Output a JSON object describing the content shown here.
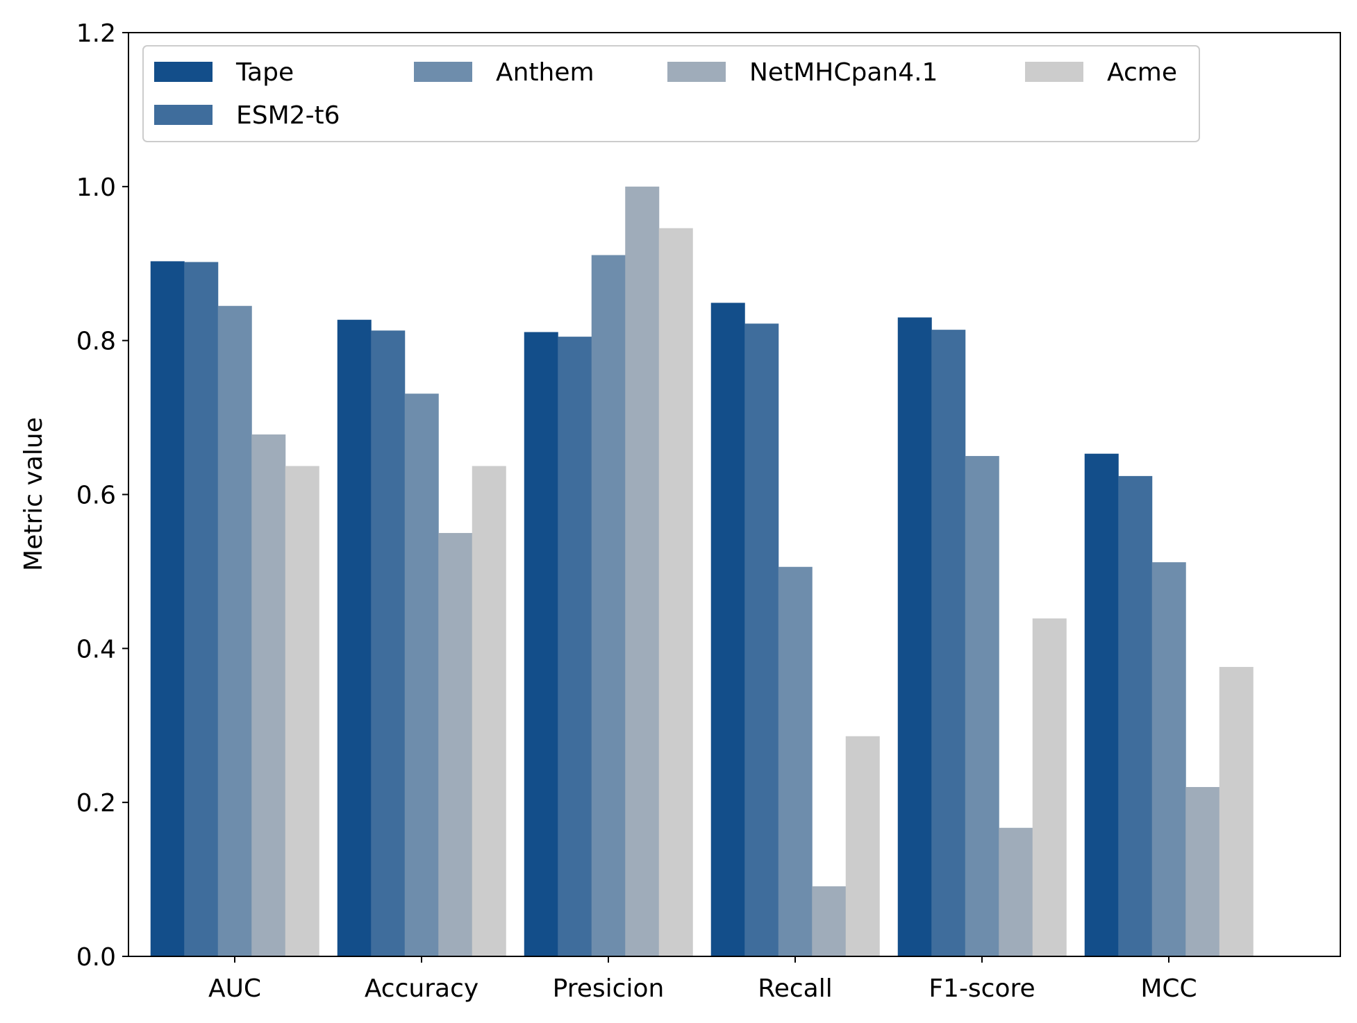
{
  "chart_data": {
    "type": "bar",
    "ylabel": "Metric value",
    "xlabel": "",
    "ylim": [
      0,
      1.2
    ],
    "yticks": [
      "0.0",
      "0.2",
      "0.4",
      "0.6",
      "0.8",
      "1.0",
      "1.2"
    ],
    "categories": [
      "AUC",
      "Accuracy",
      "Presicion",
      "Recall",
      "F1-score",
      "MCC"
    ],
    "grid": false,
    "legend_position": "top-left",
    "series": [
      {
        "name": "Tape",
        "color": "#134e8a",
        "values": [
          0.903,
          0.827,
          0.811,
          0.849,
          0.83,
          0.653
        ]
      },
      {
        "name": "ESM2-t6",
        "color": "#3f6d9c",
        "values": [
          0.902,
          0.813,
          0.805,
          0.822,
          0.814,
          0.624
        ]
      },
      {
        "name": "Anthem",
        "color": "#6e8dac",
        "values": [
          0.845,
          0.731,
          0.911,
          0.506,
          0.65,
          0.512
        ]
      },
      {
        "name": "NetMHCpan4.1",
        "color": "#9facba",
        "values": [
          0.678,
          0.55,
          1.0,
          0.091,
          0.167,
          0.22
        ]
      },
      {
        "name": "Acme",
        "color": "#cccccc",
        "values": [
          0.637,
          0.637,
          0.946,
          0.286,
          0.439,
          0.376
        ]
      }
    ]
  }
}
